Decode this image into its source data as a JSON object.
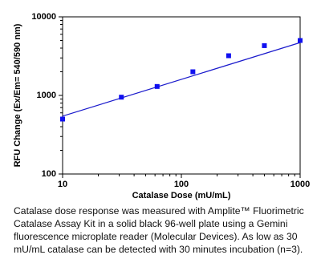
{
  "chart_data": {
    "type": "scatter",
    "x_label": "Catalase Dose (mU/mL)",
    "y_label": "RFU Change (Ex/Em= 540/590 nm)",
    "x": [
      10,
      31.25,
      62.5,
      125,
      250,
      500,
      1000
    ],
    "values": [
      500,
      950,
      1300,
      2000,
      3200,
      4300,
      5000
    ],
    "color": "#1010f0",
    "fit_line": {
      "x": [
        10,
        1000
      ],
      "values": [
        545,
        4700
      ],
      "color": "#1a1acc"
    },
    "log_x": true,
    "log_y": true,
    "xlim": [
      10,
      1000
    ],
    "ylim": [
      100,
      10000
    ],
    "xticks": [
      10,
      100,
      1000
    ],
    "yticks": [
      100,
      1000,
      10000
    ],
    "xminorticks": [
      20,
      30,
      40,
      50,
      60,
      70,
      80,
      90,
      200,
      300,
      400,
      500,
      600,
      700,
      800,
      900
    ],
    "yminorticks": [
      200,
      300,
      400,
      500,
      600,
      700,
      800,
      900,
      2000,
      3000,
      4000,
      5000,
      6000,
      7000,
      8000,
      9000
    ],
    "caption": [
      "Catalase dose response was measured with Amplite™ Fluorimetric",
      "Catalase Assay Kit in a solid black 96-well plate using a Gemini",
      "fluorescence microplate reader (Molecular Devices). As low as 30",
      "mU/mL catalase can be detected with 30 minutes incubation (n=3)."
    ]
  }
}
